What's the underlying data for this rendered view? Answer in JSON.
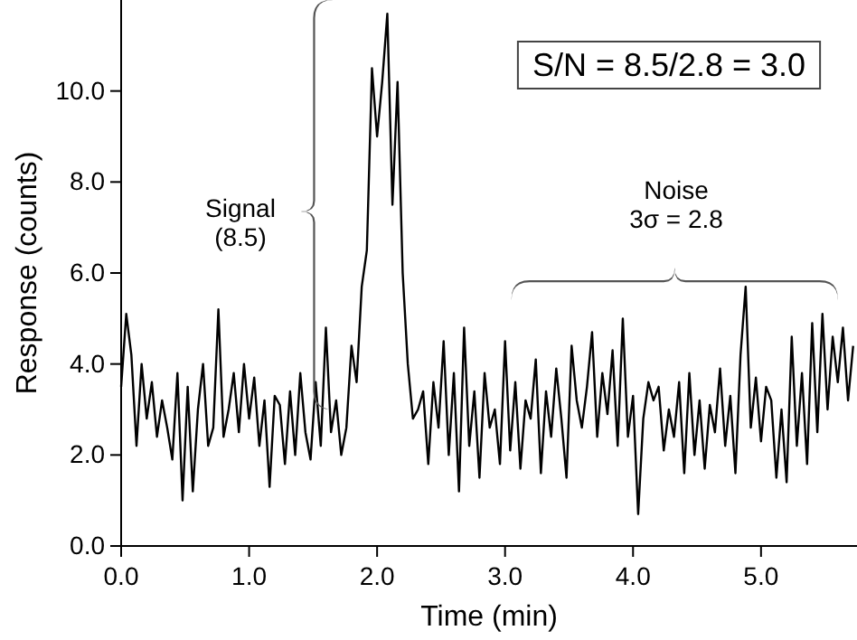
{
  "chart_data": {
    "type": "line",
    "xlabel": "Time (min)",
    "ylabel": "Response (counts)",
    "xlim": [
      0,
      5.75
    ],
    "ylim": [
      0,
      12
    ],
    "xticks": [
      {
        "value": 0,
        "label": "0.0"
      },
      {
        "value": 1,
        "label": "1.0"
      },
      {
        "value": 2,
        "label": "2.0"
      },
      {
        "value": 3,
        "label": "3.0"
      },
      {
        "value": 4,
        "label": "4.0"
      },
      {
        "value": 5,
        "label": "5.0"
      }
    ],
    "yticks": [
      {
        "value": 0,
        "label": "0.0"
      },
      {
        "value": 2,
        "label": "2.0"
      },
      {
        "value": 4,
        "label": "4.0"
      },
      {
        "value": 6,
        "label": "6.0"
      },
      {
        "value": 8,
        "label": "8.0"
      },
      {
        "value": 10,
        "label": "10.0"
      }
    ],
    "grid": false,
    "marker": "none",
    "line_style": "solid",
    "annotations": [
      "S/N = 8.5/2.8 = 3.0",
      "Signal\n(8.5)",
      "Noise\n3σ = 2.8"
    ],
    "x": [
      0,
      0.04,
      0.08,
      0.12,
      0.16,
      0.2,
      0.24,
      0.28,
      0.32,
      0.36,
      0.4,
      0.44,
      0.48,
      0.52,
      0.56,
      0.6,
      0.64,
      0.68,
      0.72,
      0.76,
      0.8,
      0.84,
      0.88,
      0.92,
      0.96,
      1,
      1.04,
      1.08,
      1.12,
      1.16,
      1.2,
      1.24,
      1.28,
      1.32,
      1.36,
      1.4,
      1.44,
      1.48,
      1.52,
      1.56,
      1.6,
      1.64,
      1.68,
      1.72,
      1.76,
      1.8,
      1.84,
      1.88,
      1.92,
      1.96,
      2,
      2.04,
      2.08,
      2.12,
      2.16,
      2.2,
      2.24,
      2.28,
      2.32,
      2.36,
      2.4,
      2.44,
      2.48,
      2.52,
      2.56,
      2.6,
      2.64,
      2.68,
      2.72,
      2.76,
      2.8,
      2.84,
      2.88,
      2.92,
      2.96,
      3,
      3.04,
      3.08,
      3.12,
      3.16,
      3.2,
      3.24,
      3.28,
      3.32,
      3.36,
      3.4,
      3.44,
      3.48,
      3.52,
      3.56,
      3.6,
      3.64,
      3.68,
      3.72,
      3.76,
      3.8,
      3.84,
      3.88,
      3.92,
      3.96,
      4,
      4.04,
      4.08,
      4.12,
      4.16,
      4.2,
      4.24,
      4.28,
      4.32,
      4.36,
      4.4,
      4.44,
      4.48,
      4.52,
      4.56,
      4.6,
      4.64,
      4.68,
      4.72,
      4.76,
      4.8,
      4.84,
      4.88,
      4.92,
      4.96,
      5,
      5.04,
      5.08,
      5.12,
      5.16,
      5.2,
      5.24,
      5.28,
      5.32,
      5.36,
      5.4,
      5.44,
      5.48,
      5.52,
      5.56,
      5.6,
      5.64,
      5.68,
      5.72
    ],
    "series": [
      {
        "color": "#000000",
        "values": [
          3.5,
          5.1,
          4.2,
          2.2,
          4.0,
          2.8,
          3.6,
          2.4,
          3.2,
          2.6,
          1.9,
          3.8,
          1.0,
          3.5,
          1.2,
          3.0,
          4.0,
          2.2,
          2.6,
          5.2,
          2.4,
          3.0,
          3.8,
          2.5,
          4.0,
          2.8,
          3.7,
          2.2,
          3.2,
          1.3,
          3.3,
          3.1,
          1.8,
          3.4,
          2.0,
          3.8,
          2.5,
          1.9,
          3.6,
          2.2,
          4.8,
          2.5,
          3.2,
          2.0,
          2.6,
          4.4,
          3.6,
          5.7,
          6.5,
          10.5,
          9.0,
          10.2,
          11.7,
          7.5,
          10.2,
          6.0,
          4.0,
          2.8,
          3.0,
          3.4,
          1.8,
          3.6,
          2.6,
          4.5,
          2.0,
          3.8,
          1.2,
          4.8,
          2.2,
          3.4,
          1.5,
          3.8,
          2.6,
          3.0,
          1.8,
          4.5,
          2.1,
          3.6,
          1.7,
          3.2,
          2.8,
          4.1,
          1.6,
          3.4,
          2.4,
          3.9,
          2.8,
          1.5,
          4.4,
          3.2,
          2.6,
          3.5,
          4.7,
          2.4,
          3.8,
          2.9,
          4.3,
          2.2,
          5.0,
          2.4,
          3.3,
          0.7,
          2.8,
          3.6,
          3.2,
          3.5,
          2.1,
          3.0,
          2.4,
          3.6,
          1.6,
          3.8,
          2.0,
          3.2,
          1.7,
          3.1,
          2.5,
          3.9,
          2.2,
          3.3,
          1.6,
          4.2,
          5.7,
          2.6,
          3.7,
          2.3,
          3.5,
          3.2,
          1.5,
          3.0,
          1.4,
          4.6,
          2.2,
          3.8,
          1.8,
          4.9,
          2.5,
          5.1,
          3.0,
          4.6,
          3.6,
          4.8,
          3.2,
          4.4
        ]
      }
    ]
  }
}
